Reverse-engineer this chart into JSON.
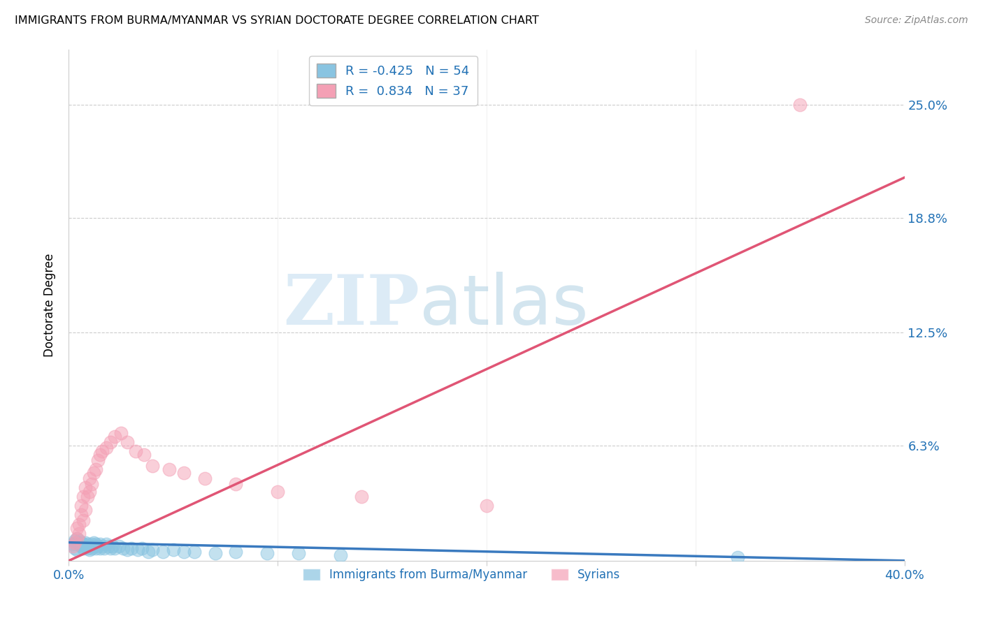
{
  "title": "IMMIGRANTS FROM BURMA/MYANMAR VS SYRIAN DOCTORATE DEGREE CORRELATION CHART",
  "source": "Source: ZipAtlas.com",
  "ylabel": "Doctorate Degree",
  "xlim": [
    0.0,
    0.4
  ],
  "ylim": [
    0.0,
    0.28
  ],
  "yticks": [
    0.0,
    0.063,
    0.125,
    0.188,
    0.25
  ],
  "ytick_labels": [
    "",
    "6.3%",
    "12.5%",
    "18.8%",
    "25.0%"
  ],
  "xticks": [
    0.0,
    0.1,
    0.2,
    0.3,
    0.4
  ],
  "xtick_labels": [
    "0.0%",
    "",
    "",
    "",
    "40.0%"
  ],
  "blue_color": "#89c4e1",
  "pink_color": "#f4a0b5",
  "blue_line_color": "#3a7abf",
  "pink_line_color": "#e05575",
  "legend_blue_R": "-0.425",
  "legend_blue_N": "54",
  "legend_pink_R": "0.834",
  "legend_pink_N": "37",
  "blue_line_x0": 0.0,
  "blue_line_y0": 0.01,
  "blue_line_x1": 0.4,
  "blue_line_y1": 0.0,
  "pink_line_x0": 0.0,
  "pink_line_y0": 0.0,
  "pink_line_x1": 0.4,
  "pink_line_y1": 0.21,
  "blue_scatter_x": [
    0.002,
    0.003,
    0.003,
    0.004,
    0.004,
    0.005,
    0.005,
    0.006,
    0.006,
    0.007,
    0.007,
    0.008,
    0.008,
    0.009,
    0.009,
    0.01,
    0.01,
    0.011,
    0.011,
    0.012,
    0.012,
    0.013,
    0.013,
    0.014,
    0.015,
    0.015,
    0.016,
    0.017,
    0.018,
    0.019,
    0.02,
    0.021,
    0.022,
    0.024,
    0.026,
    0.028,
    0.03,
    0.033,
    0.035,
    0.038,
    0.04,
    0.045,
    0.05,
    0.055,
    0.06,
    0.07,
    0.08,
    0.095,
    0.11,
    0.13,
    0.003,
    0.005,
    0.007,
    0.32
  ],
  "blue_scatter_y": [
    0.009,
    0.01,
    0.007,
    0.012,
    0.006,
    0.009,
    0.011,
    0.008,
    0.01,
    0.007,
    0.009,
    0.008,
    0.01,
    0.007,
    0.009,
    0.008,
    0.006,
    0.009,
    0.007,
    0.008,
    0.01,
    0.007,
    0.009,
    0.008,
    0.007,
    0.009,
    0.008,
    0.007,
    0.009,
    0.008,
    0.007,
    0.008,
    0.007,
    0.008,
    0.007,
    0.006,
    0.007,
    0.006,
    0.007,
    0.005,
    0.006,
    0.005,
    0.006,
    0.005,
    0.005,
    0.004,
    0.005,
    0.004,
    0.004,
    0.003,
    0.011,
    0.01,
    0.009,
    0.002
  ],
  "pink_scatter_x": [
    0.002,
    0.003,
    0.004,
    0.004,
    0.005,
    0.005,
    0.006,
    0.006,
    0.007,
    0.007,
    0.008,
    0.008,
    0.009,
    0.01,
    0.01,
    0.011,
    0.012,
    0.013,
    0.014,
    0.015,
    0.016,
    0.018,
    0.02,
    0.022,
    0.025,
    0.028,
    0.032,
    0.036,
    0.04,
    0.048,
    0.055,
    0.065,
    0.08,
    0.1,
    0.14,
    0.2,
    0.35
  ],
  "pink_scatter_y": [
    0.008,
    0.01,
    0.012,
    0.018,
    0.015,
    0.02,
    0.025,
    0.03,
    0.022,
    0.035,
    0.028,
    0.04,
    0.035,
    0.038,
    0.045,
    0.042,
    0.048,
    0.05,
    0.055,
    0.058,
    0.06,
    0.062,
    0.065,
    0.068,
    0.07,
    0.065,
    0.06,
    0.058,
    0.052,
    0.05,
    0.048,
    0.045,
    0.042,
    0.038,
    0.035,
    0.03,
    0.25
  ]
}
